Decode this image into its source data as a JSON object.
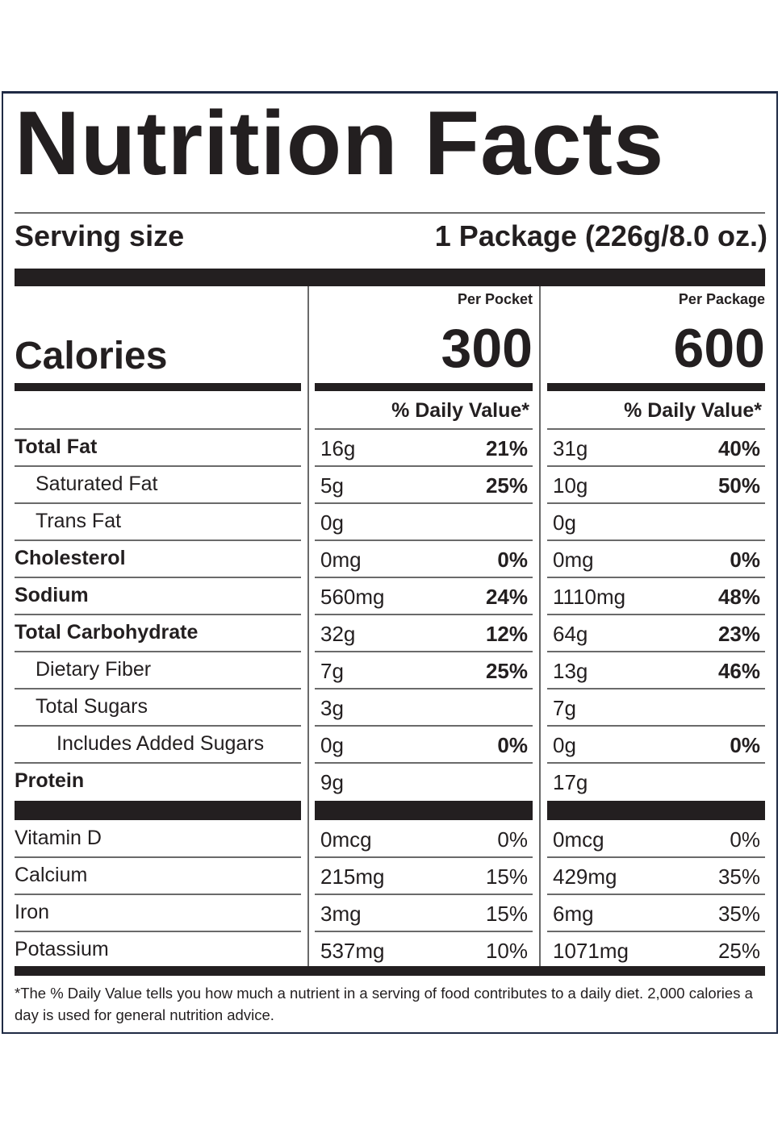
{
  "header": {
    "title": "Nutrition Facts"
  },
  "serving": {
    "label": "Serving size",
    "value": "1 Package (226g/8.0 oz.)"
  },
  "calories_label": "Calories",
  "columns": [
    {
      "heading": "Per Pocket",
      "calories": "300",
      "dv_heading": "% Daily Value*"
    },
    {
      "heading": "Per Package",
      "calories": "600",
      "dv_heading": "% Daily Value*"
    }
  ],
  "nutrients": [
    {
      "name": "Total Fat",
      "level": 0,
      "cols": [
        {
          "amount": "16g",
          "dv": "21%"
        },
        {
          "amount": "31g",
          "dv": "40%"
        }
      ]
    },
    {
      "name": "Saturated Fat",
      "level": 1,
      "cols": [
        {
          "amount": "5g",
          "dv": "25%"
        },
        {
          "amount": "10g",
          "dv": "50%"
        }
      ]
    },
    {
      "name": "Trans Fat",
      "level": 1,
      "cols": [
        {
          "amount": "0g"
        },
        {
          "amount": "0g"
        }
      ]
    },
    {
      "name": "Cholesterol",
      "level": 0,
      "cols": [
        {
          "amount": "0mg",
          "dv": "0%"
        },
        {
          "amount": "0mg",
          "dv": "0%"
        }
      ]
    },
    {
      "name": "Sodium",
      "level": 0,
      "cols": [
        {
          "amount": "560mg",
          "dv": "24%"
        },
        {
          "amount": "1110mg",
          "dv": "48%"
        }
      ]
    },
    {
      "name": "Total Carbohydrate",
      "level": 0,
      "cols": [
        {
          "amount": "32g",
          "dv": "12%"
        },
        {
          "amount": "64g",
          "dv": "23%"
        }
      ]
    },
    {
      "name": "Dietary Fiber",
      "level": 1,
      "cols": [
        {
          "amount": "7g",
          "dv": "25%"
        },
        {
          "amount": "13g",
          "dv": "46%"
        }
      ]
    },
    {
      "name": "Total Sugars",
      "level": 1,
      "cols": [
        {
          "amount": "3g"
        },
        {
          "amount": "7g"
        }
      ]
    },
    {
      "name": "Includes Added Sugars",
      "level": 2,
      "cols": [
        {
          "amount": "0g",
          "dv": "0%"
        },
        {
          "amount": "0g",
          "dv": "0%"
        }
      ]
    },
    {
      "name": "Protein",
      "level": 0,
      "cols": [
        {
          "amount": "9g"
        },
        {
          "amount": "17g"
        }
      ]
    }
  ],
  "vitamins": [
    {
      "name": "Vitamin D",
      "cols": [
        {
          "amount": "0mcg",
          "dv": "0%"
        },
        {
          "amount": "0mcg",
          "dv": "0%"
        }
      ]
    },
    {
      "name": "Calcium",
      "cols": [
        {
          "amount": "215mg",
          "dv": "15%"
        },
        {
          "amount": "429mg",
          "dv": "35%"
        }
      ]
    },
    {
      "name": "Iron",
      "cols": [
        {
          "amount": "3mg",
          "dv": "15%"
        },
        {
          "amount": "6mg",
          "dv": "35%"
        }
      ]
    },
    {
      "name": "Potassium",
      "cols": [
        {
          "amount": "537mg",
          "dv": "10%"
        },
        {
          "amount": "1071mg",
          "dv": "25%"
        }
      ]
    }
  ],
  "footnote": "*The % Daily Value tells you how much a nutrient in a serving of food contributes to a daily diet. 2,000 calories a day is used for general nutrition advice."
}
